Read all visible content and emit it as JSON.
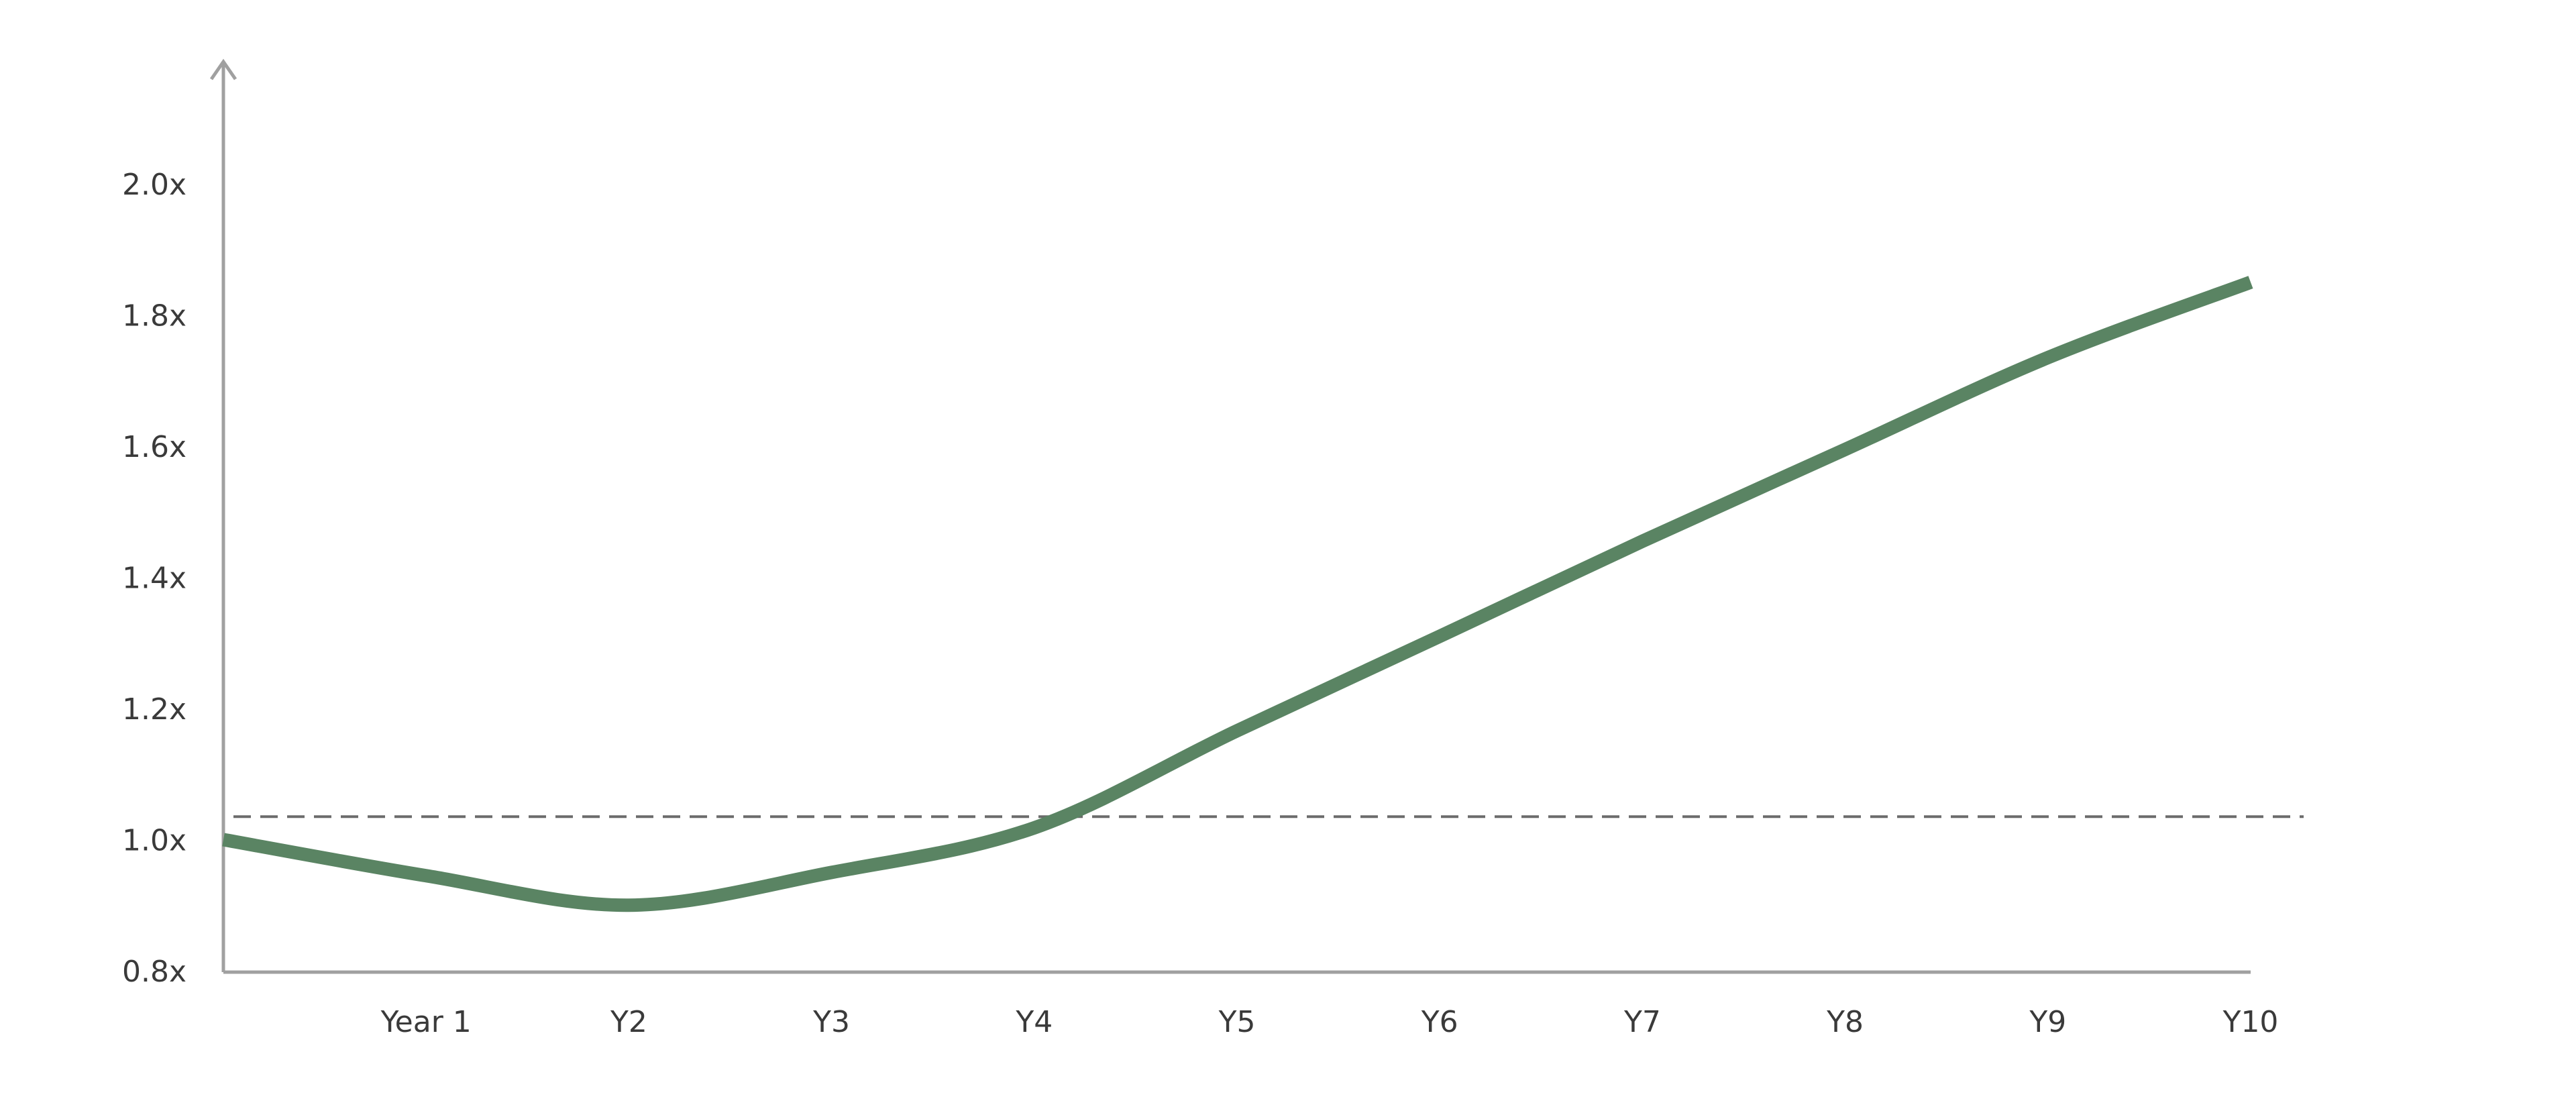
{
  "chart_data": {
    "type": "line",
    "title": "",
    "xlabel": "",
    "ylabel": "",
    "categories": [
      "",
      "Year 1",
      "Y2",
      "Y3",
      "Y4",
      "Y5",
      "Y6",
      "Y7",
      "Y8",
      "Y9",
      "Y10"
    ],
    "x": [
      0,
      1,
      2,
      3,
      4,
      5,
      6,
      7,
      8,
      9,
      10
    ],
    "series": [
      {
        "values": [
          1.0,
          0.945,
          0.9,
          0.95,
          1.018,
          1.166,
          1.31,
          1.455,
          1.595,
          1.735,
          1.85
        ]
      }
    ],
    "reference_line": {
      "value": 1.035,
      "style": "dashed"
    },
    "ylim": [
      0.8,
      2.2
    ],
    "xlim": [
      0,
      10
    ],
    "y_ticks": [
      0.8,
      1.0,
      1.2,
      1.4,
      1.6,
      1.8,
      2.0
    ],
    "y_tick_labels": [
      "0.8x",
      "1.0x",
      "1.2x",
      "1.4x",
      "1.6x",
      "1.8x",
      "2.0x"
    ],
    "grid": false,
    "legend": "none",
    "colors": {
      "series": "#5a8463",
      "axis": "#a0a0a0",
      "reference": "#6b6b6b",
      "text": "#3a3a3a"
    }
  }
}
